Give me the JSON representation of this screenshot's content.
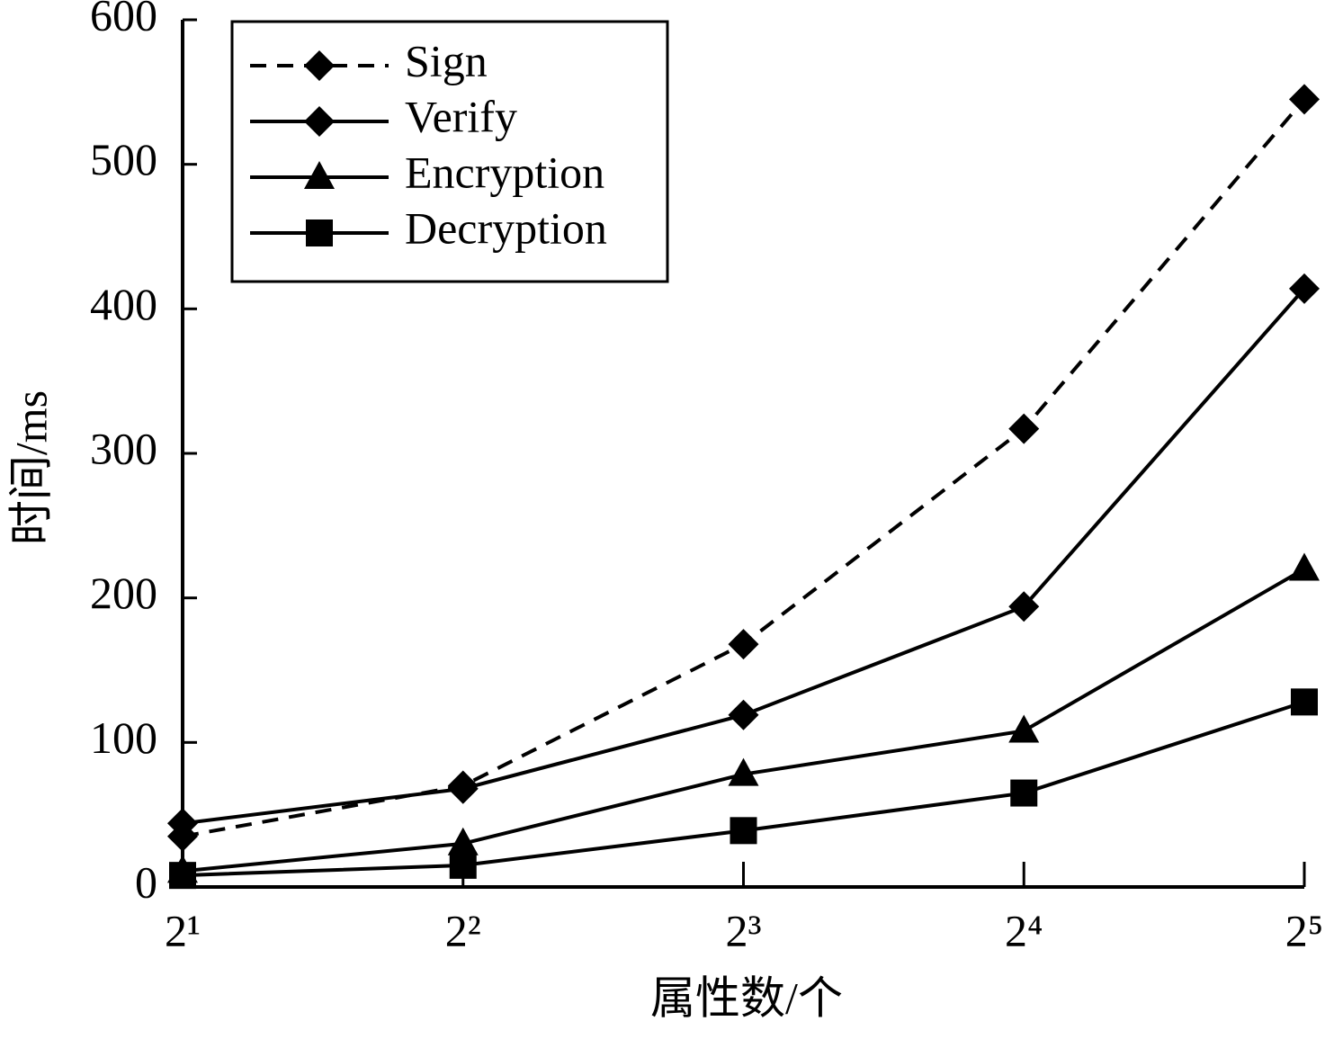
{
  "chart_data": {
    "type": "line",
    "x_label": "属性数/个",
    "y_label": "时间/ms",
    "categories": [
      "2¹",
      "2²",
      "2³",
      "2⁴",
      "2⁵"
    ],
    "series": [
      {
        "name": "Sign",
        "color": "#000000",
        "dashed": true,
        "marker": "diamond",
        "values": [
          35,
          70,
          168,
          317,
          545
        ]
      },
      {
        "name": "Verify",
        "color": "#000000",
        "dashed": false,
        "marker": "diamond",
        "values": [
          44,
          68,
          119,
          194,
          414
        ]
      },
      {
        "name": "Encryption",
        "color": "#000000",
        "dashed": false,
        "marker": "triangle",
        "values": [
          11,
          30,
          78,
          108,
          220
        ]
      },
      {
        "name": "Decryption",
        "color": "#000000",
        "dashed": false,
        "marker": "square",
        "values": [
          8,
          15,
          39,
          65,
          128
        ]
      }
    ],
    "ylim": [
      0,
      600
    ],
    "yticks": [
      0,
      100,
      200,
      300,
      400,
      500,
      600
    ],
    "grid": false,
    "legend": "upper left"
  }
}
